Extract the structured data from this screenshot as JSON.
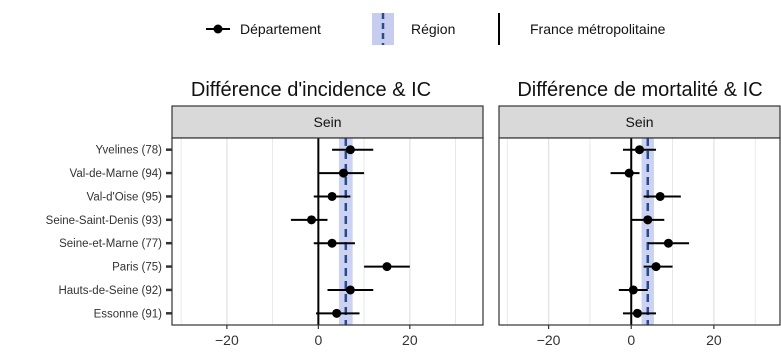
{
  "legend": {
    "departement": "Département",
    "region": "Région",
    "france": "France métropolitaine"
  },
  "colors": {
    "point": "#000000",
    "region_line": "#2b4a8c",
    "region_band": "#c7cdef",
    "strip": "#d9d9d9",
    "grid": "#e3e3e3",
    "frame": "#333333"
  },
  "chart_data": [
    {
      "type": "forest",
      "title": "Différence d'incidence & IC",
      "strip_label": "Sein",
      "categories": [
        "Yvelines (78)",
        "Val-de-Marne (94)",
        "Val-d'Oise (95)",
        "Seine-Saint-Denis (93)",
        "Seine-et-Marne (77)",
        "Paris (75)",
        "Hauts-de-Seine (92)",
        "Essonne (91)"
      ],
      "estimate": [
        7,
        5.5,
        3,
        -1.5,
        3,
        15,
        7,
        4
      ],
      "ci_low": [
        3,
        0,
        -1,
        -6,
        -1,
        10,
        2,
        -0.5
      ],
      "ci_high": [
        12,
        10,
        7,
        2,
        8,
        20,
        12,
        9
      ],
      "region": {
        "value": 6,
        "ci": [
          4.5,
          7.5
        ]
      },
      "france": 0,
      "xlim": [
        -32,
        36
      ],
      "xticks": [
        -20,
        0,
        20
      ],
      "grid": true
    },
    {
      "type": "forest",
      "title": "Différence de mortalité & IC",
      "strip_label": "Sein",
      "categories": [
        "Yvelines (78)",
        "Val-de-Marne (94)",
        "Val-d'Oise (95)",
        "Seine-Saint-Denis (93)",
        "Seine-et-Marne (77)",
        "Paris (75)",
        "Hauts-de-Seine (92)",
        "Essonne (91)"
      ],
      "estimate": [
        2,
        -0.5,
        7,
        4,
        9,
        6,
        0.5,
        1.5
      ],
      "ci_low": [
        -2,
        -5,
        3,
        0,
        4,
        3,
        -3,
        -2
      ],
      "ci_high": [
        6,
        2,
        12,
        8,
        14,
        10,
        4,
        6
      ],
      "region": {
        "value": 4,
        "ci": [
          2.5,
          5.5
        ]
      },
      "france": 0,
      "xlim": [
        -32,
        36
      ],
      "xticks": [
        -20,
        0,
        20
      ],
      "grid": true
    }
  ]
}
